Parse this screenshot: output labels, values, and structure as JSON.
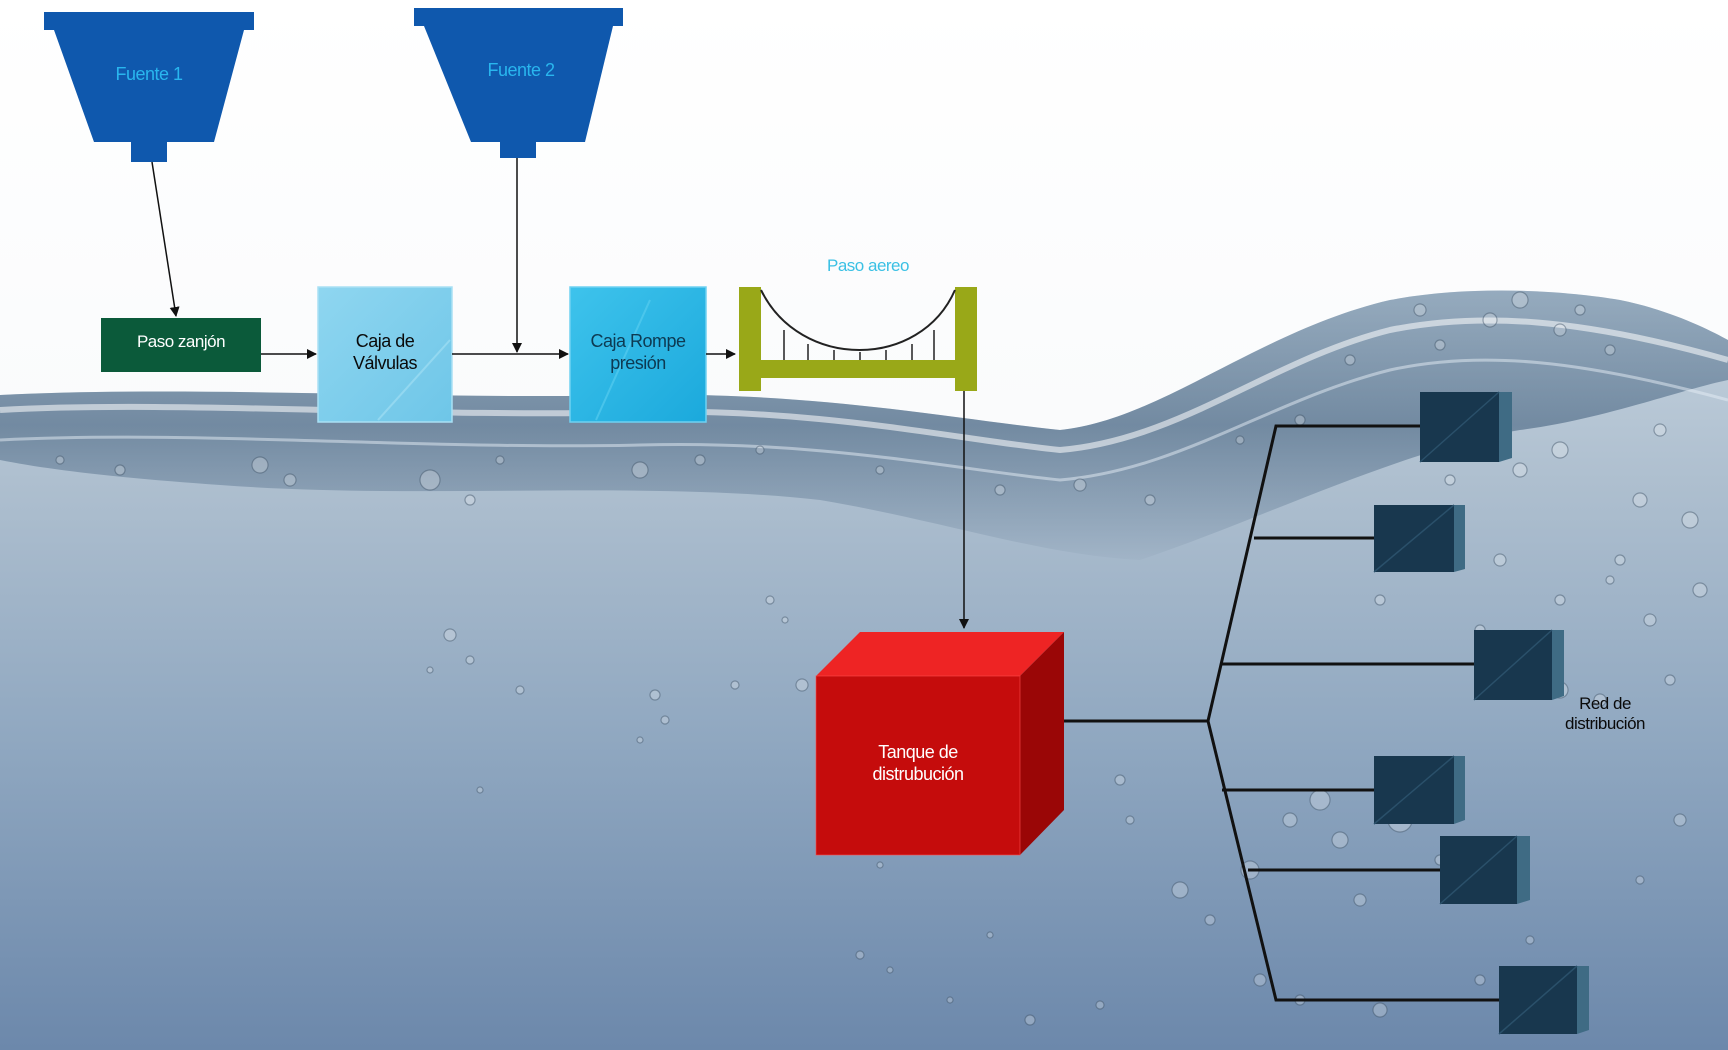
{
  "diagram": {
    "source_1": "Fuente 1",
    "source_2": "Fuente 2",
    "trench_crossing": "Paso zanjón",
    "valve_box_line1": "Caja de",
    "valve_box_line2": "Válvulas",
    "pressure_break_line1": "Caja Rompe",
    "pressure_break_line2": "presión",
    "aerial_crossing": "Paso aereo",
    "tank_line1": "Tanque de",
    "tank_line2": "distrubución",
    "network_line1": "Red de",
    "network_line2": "distribución"
  },
  "colors": {
    "source": "#0f58ad",
    "source_text": "#29b6ee",
    "trench": "#0b5a3a",
    "valve_box": "#79cdec",
    "pressure_box": "#29b7e6",
    "bridge": "#99a818",
    "aerial_text": "#3bc0e4",
    "tank_front": "#c50c0c",
    "tank_top": "#ee2424",
    "tank_side": "#9a0606",
    "node": "#18374e"
  }
}
